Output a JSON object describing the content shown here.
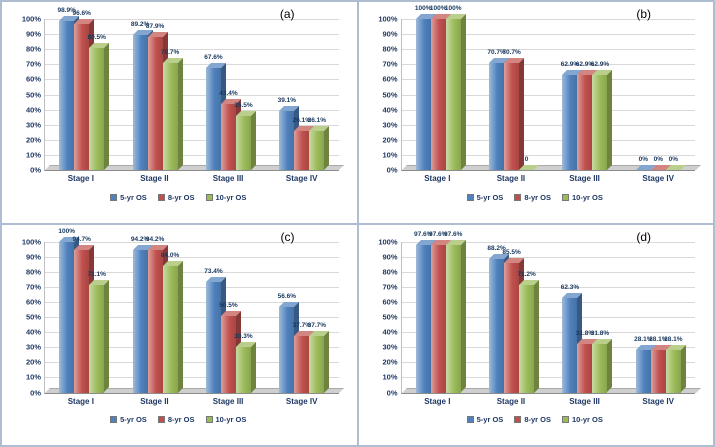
{
  "chart_data": [
    {
      "type": "bar",
      "panel_label": "(a)",
      "categories": [
        "Stage I",
        "Stage II",
        "Stage III",
        "Stage IV"
      ],
      "yticks": [
        "0%",
        "10%",
        "20%",
        "30%",
        "40%",
        "50%",
        "60%",
        "70%",
        "80%",
        "90%",
        "100%"
      ],
      "ylim": [
        0,
        100
      ],
      "grid": true,
      "legend_position": "bottom",
      "series": [
        {
          "name": "5-yr OS",
          "color": "#4F81BD",
          "values": [
            98.9,
            89.2,
            67.6,
            39.1
          ],
          "labels": [
            "98.9%",
            "89.2%",
            "67.6%",
            "39.1%"
          ]
        },
        {
          "name": "8-yr OS",
          "color": "#C0504D",
          "values": [
            96.6,
            87.9,
            43.4,
            26.1
          ],
          "labels": [
            "96.6%",
            "87.9%",
            "43.4%",
            "26.1%"
          ]
        },
        {
          "name": "10-yr OS",
          "color": "#9BBB59",
          "values": [
            80.5,
            70.7,
            35.5,
            26.1
          ],
          "labels": [
            "80.5%",
            "70.7%",
            "35.5%",
            "26.1%"
          ]
        }
      ]
    },
    {
      "type": "bar",
      "panel_label": "(b)",
      "categories": [
        "Stage I",
        "Stage II",
        "Stage III",
        "Stage IV"
      ],
      "yticks": [
        "0%",
        "10%",
        "20%",
        "30%",
        "40%",
        "50%",
        "60%",
        "70%",
        "80%",
        "90%",
        "100%"
      ],
      "ylim": [
        0,
        100
      ],
      "grid": true,
      "legend_position": "bottom",
      "series": [
        {
          "name": "5-yr OS",
          "color": "#4F81BD",
          "values": [
            100,
            70.7,
            62.9,
            0
          ],
          "labels": [
            "100%",
            "70.7%",
            "62.9%",
            "0%"
          ]
        },
        {
          "name": "8-yr OS",
          "color": "#C0504D",
          "values": [
            100,
            70.7,
            62.9,
            0
          ],
          "labels": [
            "100%",
            "70.7%",
            "62.9%",
            "0%"
          ]
        },
        {
          "name": "10-yr OS",
          "color": "#9BBB59",
          "values": [
            100,
            0,
            62.9,
            0
          ],
          "labels": [
            "100%",
            "0",
            "62.9%",
            "0%"
          ]
        }
      ]
    },
    {
      "type": "bar",
      "panel_label": "(c)",
      "categories": [
        "Stage I",
        "Stage II",
        "Stage III",
        "Stage IV"
      ],
      "yticks": [
        "0%",
        "10%",
        "20%",
        "30%",
        "40%",
        "50%",
        "60%",
        "70%",
        "80%",
        "90%",
        "100%"
      ],
      "ylim": [
        0,
        100
      ],
      "grid": true,
      "legend_position": "bottom",
      "series": [
        {
          "name": "5-yr OS",
          "color": "#4F81BD",
          "values": [
            100,
            94.2,
            73.4,
            56.6
          ],
          "labels": [
            "100%",
            "94.2%",
            "73.4%",
            "56.6%"
          ]
        },
        {
          "name": "8-yr OS",
          "color": "#C0504D",
          "values": [
            94.7,
            94.2,
            50.5,
            37.7
          ],
          "labels": [
            "94.7%",
            "94.2%",
            "50.5%",
            "37.7%"
          ]
        },
        {
          "name": "10-yr OS",
          "color": "#9BBB59",
          "values": [
            71.1,
            84.0,
            30.3,
            37.7
          ],
          "labels": [
            "71.1%",
            "84.0%",
            "30.3%",
            "37.7%"
          ]
        }
      ]
    },
    {
      "type": "bar",
      "panel_label": "(d)",
      "categories": [
        "Stage I",
        "Stage II",
        "Stage III",
        "Stage IV"
      ],
      "yticks": [
        "0%",
        "10%",
        "20%",
        "30%",
        "40%",
        "50%",
        "60%",
        "70%",
        "80%",
        "90%",
        "100%"
      ],
      "ylim": [
        0,
        100
      ],
      "grid": true,
      "legend_position": "bottom",
      "series": [
        {
          "name": "5-yr OS",
          "color": "#4F81BD",
          "values": [
            97.6,
            88.2,
            62.3,
            28.1
          ],
          "labels": [
            "97.6%",
            "88.2%",
            "62.3%",
            "28.1%"
          ]
        },
        {
          "name": "8-yr OS",
          "color": "#C0504D",
          "values": [
            97.6,
            85.5,
            31.8,
            28.1
          ],
          "labels": [
            "97.6%",
            "85.5%",
            "31.8%",
            "28.1%"
          ]
        },
        {
          "name": "10-yr OS",
          "color": "#9BBB59",
          "values": [
            97.6,
            71.2,
            31.8,
            28.1
          ],
          "labels": [
            "97.6%",
            "71.2%",
            "31.8%",
            "28.1%"
          ]
        }
      ]
    }
  ]
}
